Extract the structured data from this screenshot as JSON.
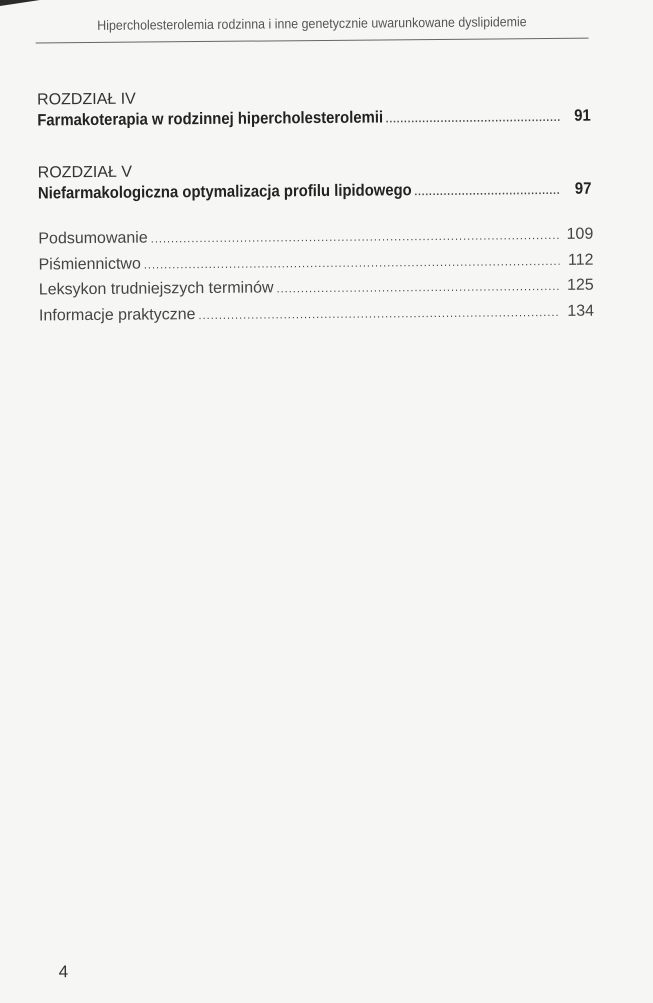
{
  "running_head": "Hipercholesterolemia rodzinna i inne genetycznie uwarunkowane dyslipidemie",
  "chapters": [
    {
      "label": "ROZDZIAŁ IV",
      "title": "Farmakoterapia w rodzinnej hipercholesterolemii",
      "page": "91"
    },
    {
      "label": "ROZDZIAŁ V",
      "title": "Niefarmakologiczna optymalizacja profilu lipidowego",
      "page": "97"
    }
  ],
  "entries": [
    {
      "title": "Podsumowanie",
      "page": "109"
    },
    {
      "title": "Piśmiennictwo",
      "page": "112"
    },
    {
      "title": "Leksykon trudniejszych terminów",
      "page": "125"
    },
    {
      "title": "Informacje praktyczne",
      "page": "134"
    }
  ],
  "page_number": "4"
}
